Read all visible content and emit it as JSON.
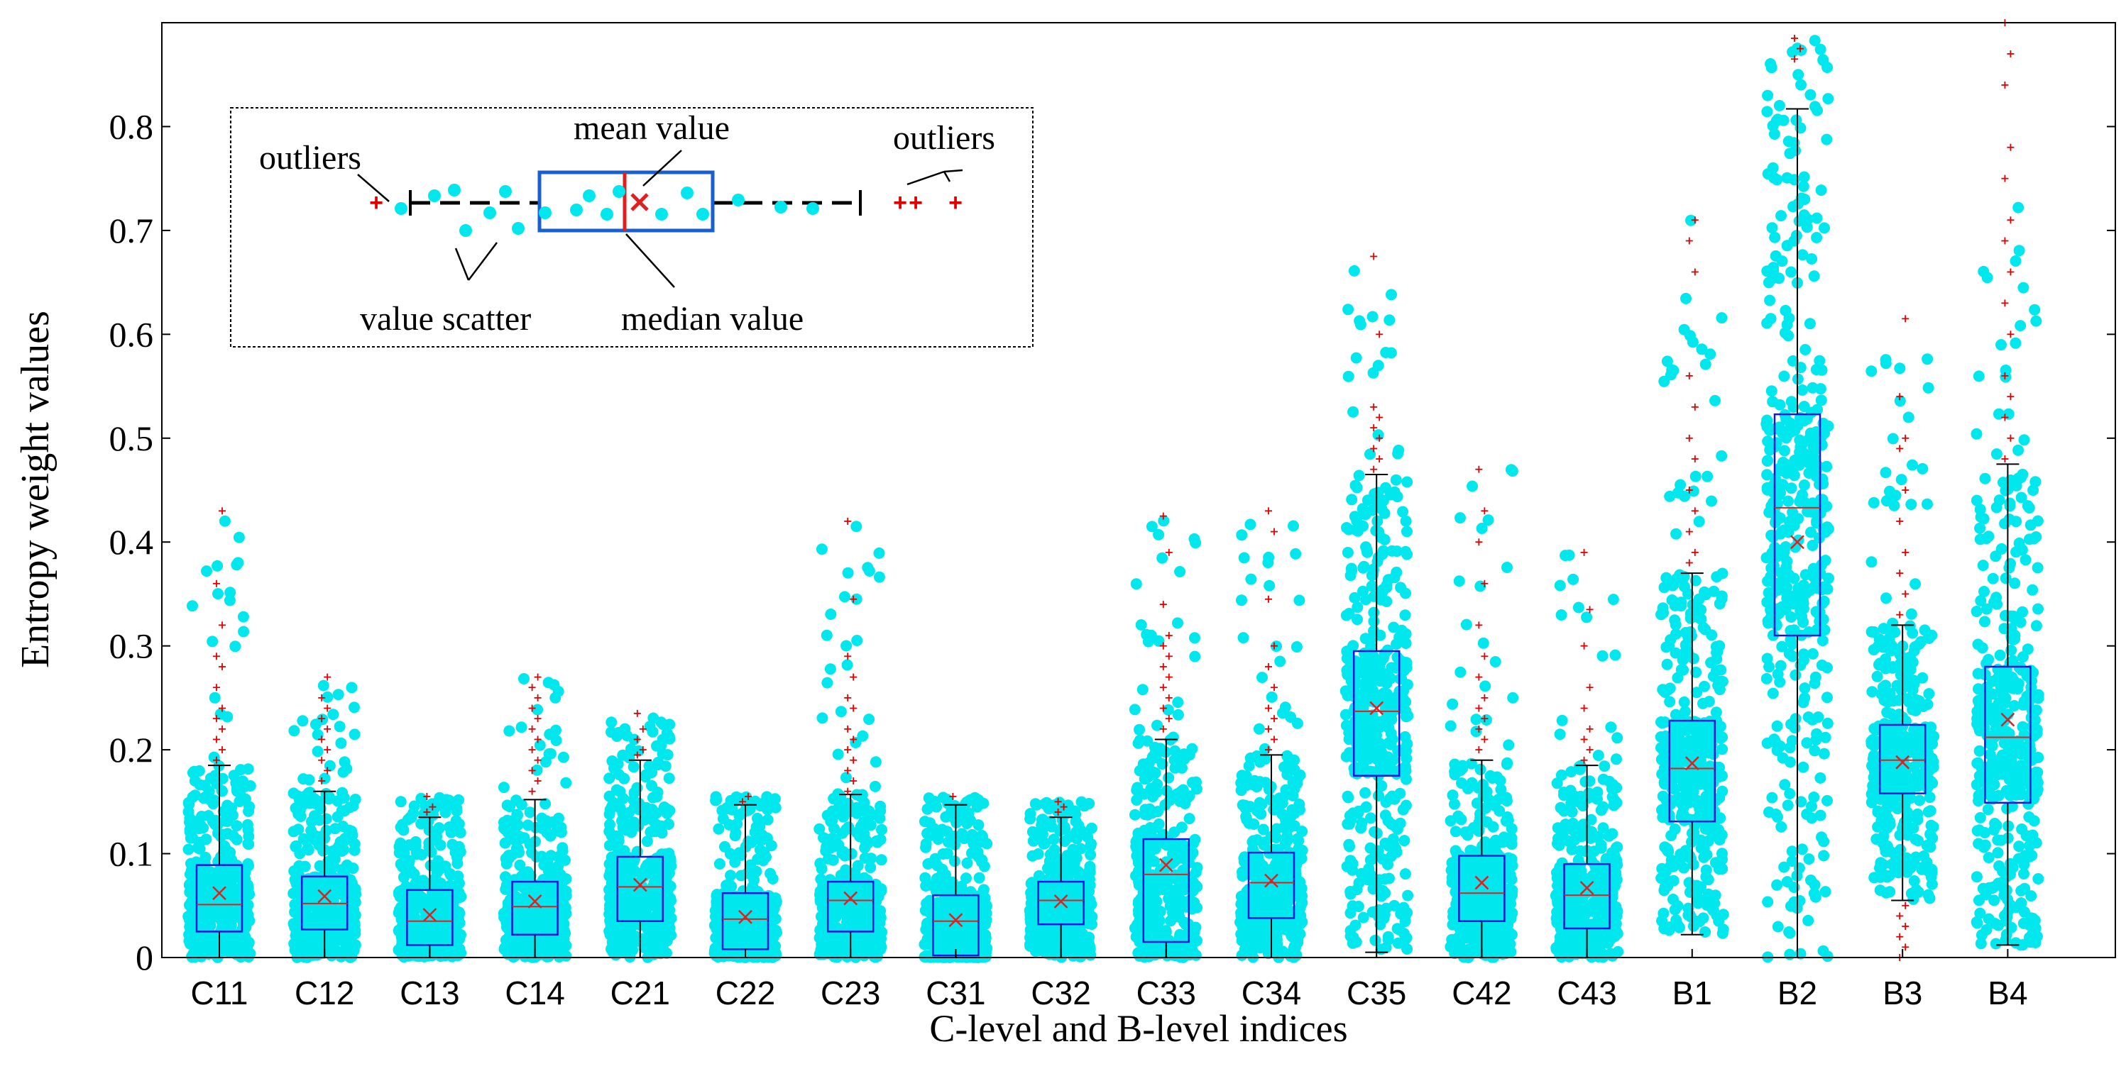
{
  "chart_data": {
    "type": "box",
    "xlabel": "C-level and B-level indices",
    "ylabel": "Entropy weight values",
    "ylim": [
      0,
      0.9
    ],
    "yticks": [
      0,
      0.1,
      0.2,
      0.3,
      0.4,
      0.5,
      0.6,
      0.7,
      0.8
    ],
    "ytick_labels": [
      "0",
      "0.1",
      "0.2",
      "0.3",
      "0.4",
      "0.5",
      "0.6",
      "0.7",
      "0.8"
    ],
    "categories": [
      "C11",
      "C12",
      "C13",
      "C14",
      "C21",
      "C22",
      "C23",
      "C31",
      "C32",
      "C33",
      "C34",
      "C35",
      "C42",
      "C43",
      "B1",
      "B2",
      "B3",
      "B4"
    ],
    "boxes": [
      {
        "name": "C11",
        "q1": 0.025,
        "median": 0.051,
        "q3": 0.089,
        "whisker_low": 0.0,
        "whisker_high": 0.185,
        "mean": 0.062,
        "scatter_max": 0.43,
        "outliers": [
          0.19,
          0.2,
          0.21,
          0.22,
          0.23,
          0.24,
          0.26,
          0.28,
          0.29,
          0.32,
          0.36,
          0.43
        ]
      },
      {
        "name": "C12",
        "q1": 0.027,
        "median": 0.052,
        "q3": 0.078,
        "whisker_low": 0.0,
        "whisker_high": 0.16,
        "mean": 0.059,
        "scatter_max": 0.27,
        "outliers": [
          0.17,
          0.18,
          0.19,
          0.2,
          0.21,
          0.22,
          0.23,
          0.24,
          0.25,
          0.27
        ]
      },
      {
        "name": "C13",
        "q1": 0.012,
        "median": 0.035,
        "q3": 0.065,
        "whisker_low": 0.0,
        "whisker_high": 0.135,
        "mean": 0.041,
        "scatter_max": 0.155,
        "outliers": [
          0.14,
          0.145,
          0.155
        ]
      },
      {
        "name": "C14",
        "q1": 0.022,
        "median": 0.049,
        "q3": 0.073,
        "whisker_low": 0.0,
        "whisker_high": 0.152,
        "mean": 0.054,
        "scatter_max": 0.27,
        "outliers": [
          0.16,
          0.17,
          0.18,
          0.19,
          0.2,
          0.21,
          0.22,
          0.23,
          0.24,
          0.25,
          0.26,
          0.27
        ]
      },
      {
        "name": "C21",
        "q1": 0.035,
        "median": 0.068,
        "q3": 0.097,
        "whisker_low": 0.0,
        "whisker_high": 0.19,
        "mean": 0.07,
        "scatter_max": 0.235,
        "outliers": [
          0.195,
          0.2,
          0.21,
          0.22,
          0.235
        ]
      },
      {
        "name": "C22",
        "q1": 0.008,
        "median": 0.037,
        "q3": 0.062,
        "whisker_low": 0.0,
        "whisker_high": 0.147,
        "mean": 0.039,
        "scatter_max": 0.155,
        "outliers": [
          0.15,
          0.155
        ]
      },
      {
        "name": "C23",
        "q1": 0.025,
        "median": 0.055,
        "q3": 0.073,
        "whisker_low": 0.0,
        "whisker_high": 0.157,
        "mean": 0.057,
        "scatter_max": 0.42,
        "outliers": [
          0.16,
          0.17,
          0.18,
          0.19,
          0.2,
          0.21,
          0.22,
          0.24,
          0.25,
          0.27,
          0.29,
          0.345,
          0.42
        ]
      },
      {
        "name": "C31",
        "q1": 0.002,
        "median": 0.035,
        "q3": 0.06,
        "whisker_low": 0.0,
        "whisker_high": 0.147,
        "mean": 0.036,
        "scatter_max": 0.155,
        "outliers": [
          0.155
        ]
      },
      {
        "name": "C32",
        "q1": 0.032,
        "median": 0.055,
        "q3": 0.073,
        "whisker_low": 0.0,
        "whisker_high": 0.135,
        "mean": 0.054,
        "scatter_max": 0.15,
        "outliers": [
          0.14,
          0.145,
          0.15
        ]
      },
      {
        "name": "C33",
        "q1": 0.015,
        "median": 0.08,
        "q3": 0.114,
        "whisker_low": 0.0,
        "whisker_high": 0.21,
        "mean": 0.089,
        "scatter_max": 0.425,
        "outliers": [
          0.22,
          0.23,
          0.24,
          0.25,
          0.26,
          0.27,
          0.28,
          0.29,
          0.3,
          0.31,
          0.34,
          0.39,
          0.425
        ]
      },
      {
        "name": "C34",
        "q1": 0.038,
        "median": 0.072,
        "q3": 0.101,
        "whisker_low": 0.0,
        "whisker_high": 0.195,
        "mean": 0.074,
        "scatter_max": 0.43,
        "outliers": [
          0.2,
          0.21,
          0.22,
          0.23,
          0.24,
          0.26,
          0.28,
          0.3,
          0.345,
          0.41,
          0.43
        ]
      },
      {
        "name": "C35",
        "q1": 0.175,
        "median": 0.237,
        "q3": 0.295,
        "whisker_low": 0.005,
        "whisker_high": 0.465,
        "mean": 0.24,
        "scatter_max": 0.675,
        "outliers": [
          0.47,
          0.48,
          0.49,
          0.5,
          0.51,
          0.52,
          0.53,
          0.6,
          0.675
        ]
      },
      {
        "name": "C42",
        "q1": 0.035,
        "median": 0.062,
        "q3": 0.098,
        "whisker_low": 0.0,
        "whisker_high": 0.19,
        "mean": 0.072,
        "scatter_max": 0.47,
        "outliers": [
          0.2,
          0.21,
          0.22,
          0.23,
          0.24,
          0.25,
          0.27,
          0.29,
          0.32,
          0.36,
          0.4,
          0.43,
          0.47
        ]
      },
      {
        "name": "C43",
        "q1": 0.028,
        "median": 0.06,
        "q3": 0.09,
        "whisker_low": 0.0,
        "whisker_high": 0.185,
        "mean": 0.067,
        "scatter_max": 0.39,
        "outliers": [
          0.19,
          0.2,
          0.21,
          0.22,
          0.24,
          0.26,
          0.3,
          0.335,
          0.39
        ]
      },
      {
        "name": "B1",
        "q1": 0.131,
        "median": 0.182,
        "q3": 0.228,
        "whisker_low": 0.022,
        "whisker_high": 0.37,
        "mean": 0.187,
        "scatter_max": 0.71,
        "outliers": [
          0.38,
          0.39,
          0.41,
          0.43,
          0.45,
          0.48,
          0.5,
          0.53,
          0.56,
          0.66,
          0.69,
          0.71
        ]
      },
      {
        "name": "B2",
        "q1": 0.31,
        "median": 0.433,
        "q3": 0.523,
        "whisker_low": 0.0,
        "whisker_high": 0.817,
        "mean": 0.4,
        "scatter_max": 0.885,
        "outliers": [
          0.865,
          0.875,
          0.885
        ]
      },
      {
        "name": "B3",
        "q1": 0.158,
        "median": 0.19,
        "q3": 0.224,
        "whisker_low": 0.055,
        "whisker_high": 0.32,
        "mean": 0.188,
        "scatter_max": 0.615,
        "outliers": [
          0.0,
          0.01,
          0.02,
          0.03,
          0.04,
          0.05,
          0.33,
          0.35,
          0.37,
          0.39,
          0.42,
          0.45,
          0.49,
          0.5,
          0.54,
          0.615
        ]
      },
      {
        "name": "B4",
        "q1": 0.149,
        "median": 0.212,
        "q3": 0.28,
        "whisker_low": 0.012,
        "whisker_high": 0.475,
        "mean": 0.229,
        "scatter_max": 0.9,
        "outliers": [
          0.48,
          0.5,
          0.52,
          0.54,
          0.56,
          0.6,
          0.63,
          0.66,
          0.69,
          0.71,
          0.75,
          0.78,
          0.84,
          0.87,
          0.9
        ]
      }
    ],
    "legend_annotations": {
      "outliers_left": "outliers",
      "outliers_right": "outliers",
      "mean_value": "mean value",
      "median_value": "median value",
      "value_scatter": "value scatter"
    }
  },
  "colors": {
    "scatter": "#00e8ee",
    "box": "#1515e0",
    "median": "#e02020",
    "mean": "#e02020",
    "outlier": "#e00000",
    "whisker": "#000000"
  }
}
